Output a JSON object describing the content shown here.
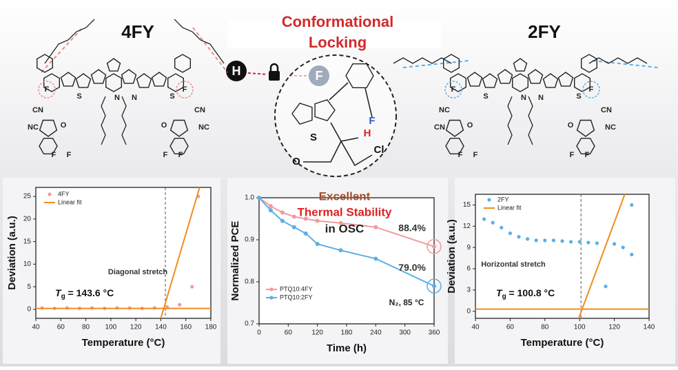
{
  "header": {
    "title_line1": "Conformational",
    "title_line2": "Locking",
    "left_molecule": "4FY",
    "right_molecule": "2FY",
    "lock_h": "H",
    "lock_f": "F",
    "inset_atoms": [
      "S",
      "F",
      "H",
      "O",
      "Cl"
    ],
    "left_atoms": [
      "F",
      "S",
      "N",
      "N",
      "S",
      "F",
      "CN",
      "NC",
      "O",
      "O",
      "CN",
      "NC",
      "F",
      "F",
      "F",
      "F"
    ],
    "right_atoms": [
      "F",
      "S",
      "N",
      "N",
      "S",
      "F",
      "NC",
      "CN",
      "O",
      "O",
      "CN",
      "NC",
      "F",
      "F",
      "F",
      "F"
    ]
  },
  "chart_data": [
    {
      "type": "scatter",
      "xlabel": "Temperature (°C)",
      "ylabel": "Deviation (a.u.)",
      "xlim": [
        40,
        180
      ],
      "xticks": [
        40,
        60,
        80,
        100,
        120,
        140,
        160,
        180
      ],
      "ylim": [
        -2,
        27
      ],
      "yticks": [
        0,
        5,
        10,
        15,
        20,
        25
      ],
      "legend": "top-left",
      "annotation": "Diagonal stretch",
      "tg": {
        "symbol": "T",
        "sub": "g",
        "rest": " = 143.6 °C"
      },
      "tg_line": 143.6,
      "series": [
        {
          "name": "4FY",
          "color": "#f29a9a",
          "mode": "markers",
          "x": [
            45,
            55,
            65,
            75,
            85,
            95,
            105,
            115,
            125,
            135,
            145,
            155,
            165,
            170
          ],
          "values": [
            0.3,
            0.2,
            0.3,
            0.2,
            0.3,
            0.2,
            0.3,
            0.3,
            0.2,
            0.3,
            0.5,
            1,
            5,
            25
          ]
        },
        {
          "name": "Linear fit",
          "color": "#f08c1e",
          "mode": "lines",
          "x": [
            40,
            180,
            160,
            140,
            171
          ],
          "values": [
            0.2,
            0.2,
            null,
            -2,
            27
          ]
        }
      ]
    },
    {
      "type": "line",
      "xlabel": "Time (h)",
      "ylabel": "Normalized PCE",
      "xlim": [
        0,
        360
      ],
      "xticks": [
        0,
        60,
        120,
        180,
        240,
        300,
        360
      ],
      "ylim": [
        0.7,
        1.0
      ],
      "yticks": [
        0.7,
        0.8,
        0.9,
        {
          "value": 1,
          "label": "1.0"
        }
      ],
      "legend": "bottom-left",
      "x": [
        0,
        24,
        48,
        72,
        96,
        120,
        168,
        240,
        360
      ],
      "annotations": [
        "Excellent",
        "Thermal Stability",
        "in OSC",
        "N₂, 85 °C"
      ],
      "series": [
        {
          "name": "PTQ10:4FY",
          "color": "#f29a9a",
          "mode": "lines+markers",
          "values": [
            1.0,
            0.98,
            0.965,
            0.955,
            0.95,
            0.945,
            0.94,
            0.93,
            0.884
          ],
          "value_labels": [
            null,
            null,
            null,
            null,
            null,
            null,
            null,
            null,
            "88.4%"
          ]
        },
        {
          "name": "PTQ10:2FY",
          "color": "#5aaee6",
          "mode": "lines+markers",
          "values": [
            1.0,
            0.97,
            0.945,
            0.93,
            0.915,
            0.89,
            0.875,
            0.855,
            0.79
          ],
          "value_labels": [
            null,
            null,
            null,
            null,
            null,
            null,
            null,
            null,
            "79.0%"
          ]
        }
      ]
    },
    {
      "type": "scatter",
      "xlabel": "Temperature (°C)",
      "ylabel": "Deviation (a.u.)",
      "xlim": [
        40,
        140
      ],
      "xticks": [
        40,
        60,
        80,
        100,
        120,
        140
      ],
      "ylim": [
        -1,
        16.5
      ],
      "yticks": [
        0,
        3,
        6,
        9,
        12,
        15
      ],
      "legend": "top-left",
      "annotation": "Horizontal stretch",
      "tg": {
        "symbol": "T",
        "sub": "g",
        "rest": " = 100.8 °C"
      },
      "tg_line": 100.8,
      "series": [
        {
          "name": "2FY",
          "color": "#5aaee6",
          "mode": "markers",
          "x": [
            45,
            50,
            55,
            60,
            65,
            70,
            75,
            80,
            85,
            90,
            95,
            100,
            105,
            110,
            115,
            120,
            125,
            130,
            130
          ],
          "values": [
            13,
            12.5,
            11.8,
            11,
            10.5,
            10.2,
            10,
            10,
            10,
            9.9,
            9.8,
            9.8,
            9.7,
            9.6,
            3.5,
            9.5,
            9,
            8,
            15
          ]
        },
        {
          "name": "Linear fit",
          "color": "#f08c1e",
          "mode": "lines",
          "x": [
            40,
            140,
            120,
            99.5,
            126
          ],
          "values": [
            0.3,
            0.3,
            null,
            -1,
            16.5
          ]
        }
      ]
    }
  ]
}
